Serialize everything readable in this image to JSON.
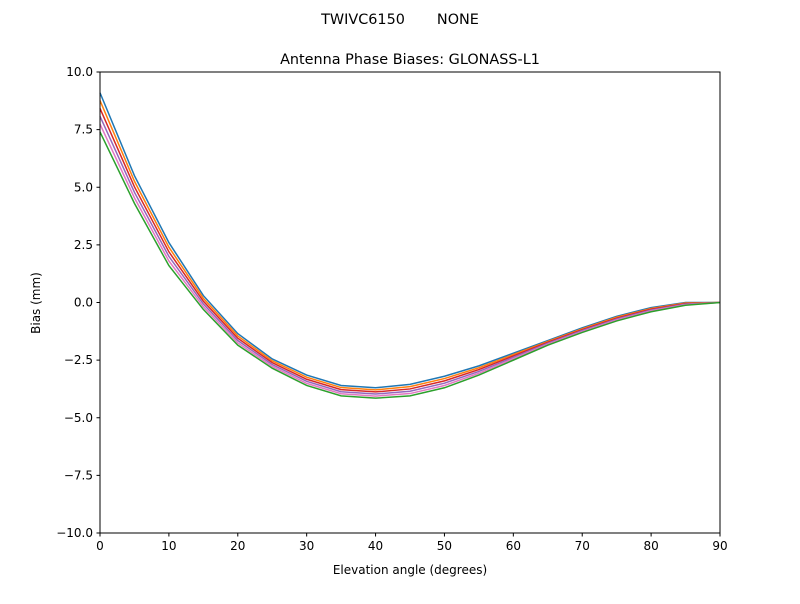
{
  "chart_data": {
    "type": "line",
    "suptitle": "TWIVC6150       NONE",
    "title": "Antenna Phase Biases: GLONASS-L1",
    "xlabel": "Elevation angle (degrees)",
    "ylabel": "Bias (mm)",
    "xlim": [
      0,
      90
    ],
    "ylim": [
      -10,
      10
    ],
    "xticks": [
      "0",
      "10",
      "20",
      "30",
      "40",
      "50",
      "60",
      "70",
      "80",
      "90"
    ],
    "yticks": [
      "10.0",
      "7.5",
      "5.0",
      "2.5",
      "0.0",
      "−2.5",
      "−5.0",
      "−7.5",
      "−10.0"
    ],
    "grid": false,
    "x": [
      0,
      5,
      10,
      15,
      20,
      25,
      30,
      35,
      40,
      45,
      50,
      55,
      60,
      65,
      70,
      75,
      80,
      85,
      90
    ],
    "series": [
      {
        "color": "#1f77b4",
        "values": [
          9.1,
          5.5,
          2.6,
          0.3,
          -1.35,
          -2.45,
          -3.15,
          -3.6,
          -3.7,
          -3.55,
          -3.2,
          -2.75,
          -2.2,
          -1.65,
          -1.1,
          -0.6,
          -0.22,
          0,
          0
        ]
      },
      {
        "color": "#ff7f0e",
        "values": [
          8.76,
          5.26,
          2.4,
          0.18,
          -1.45,
          -2.53,
          -3.24,
          -3.69,
          -3.79,
          -3.65,
          -3.3,
          -2.83,
          -2.26,
          -1.69,
          -1.14,
          -0.64,
          -0.26,
          -0.02,
          0
        ]
      },
      {
        "color": "#d62728",
        "values": [
          8.42,
          5.02,
          2.2,
          0.06,
          -1.55,
          -2.61,
          -3.33,
          -3.78,
          -3.88,
          -3.75,
          -3.4,
          -2.91,
          -2.32,
          -1.73,
          -1.18,
          -0.68,
          -0.29,
          -0.05,
          0
        ]
      },
      {
        "color": "#9467bd",
        "values": [
          8.08,
          4.78,
          2.0,
          -0.06,
          -1.65,
          -2.69,
          -3.42,
          -3.87,
          -3.97,
          -3.85,
          -3.5,
          -2.99,
          -2.38,
          -1.77,
          -1.22,
          -0.72,
          -0.33,
          -0.07,
          0
        ]
      },
      {
        "color": "#e377c2",
        "values": [
          7.74,
          4.54,
          1.8,
          -0.18,
          -1.75,
          -2.77,
          -3.51,
          -3.96,
          -4.06,
          -3.95,
          -3.6,
          -3.07,
          -2.44,
          -1.81,
          -1.26,
          -0.76,
          -0.36,
          -0.1,
          0
        ]
      },
      {
        "color": "#2ca02c",
        "values": [
          7.4,
          4.3,
          1.6,
          -0.3,
          -1.85,
          -2.85,
          -3.6,
          -4.05,
          -4.15,
          -4.05,
          -3.7,
          -3.15,
          -2.5,
          -1.85,
          -1.3,
          -0.8,
          -0.4,
          -0.12,
          0
        ]
      }
    ]
  }
}
